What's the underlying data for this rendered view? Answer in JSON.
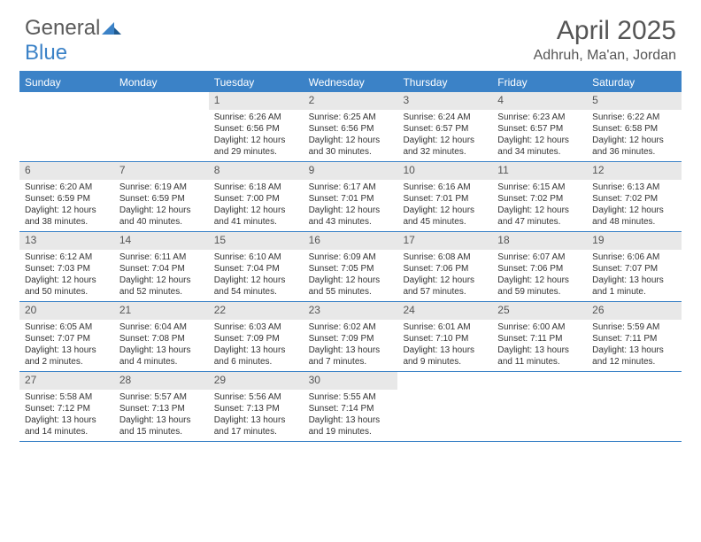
{
  "logo": {
    "general": "General",
    "blue": "Blue"
  },
  "title": "April 2025",
  "location": "Adhruh, Ma'an, Jordan",
  "colors": {
    "header_bar": "#3b82c7",
    "daynum_bg": "#e8e8e8",
    "text": "#333333",
    "title_text": "#555555",
    "background": "#ffffff"
  },
  "layout": {
    "columns": 7,
    "weeks": 5
  },
  "daysOfWeek": [
    "Sunday",
    "Monday",
    "Tuesday",
    "Wednesday",
    "Thursday",
    "Friday",
    "Saturday"
  ],
  "days": [
    {
      "n": "",
      "empty": true
    },
    {
      "n": "",
      "empty": true
    },
    {
      "n": "1",
      "sunrise": "6:26 AM",
      "sunset": "6:56 PM",
      "daylight": "12 hours and 29 minutes."
    },
    {
      "n": "2",
      "sunrise": "6:25 AM",
      "sunset": "6:56 PM",
      "daylight": "12 hours and 30 minutes."
    },
    {
      "n": "3",
      "sunrise": "6:24 AM",
      "sunset": "6:57 PM",
      "daylight": "12 hours and 32 minutes."
    },
    {
      "n": "4",
      "sunrise": "6:23 AM",
      "sunset": "6:57 PM",
      "daylight": "12 hours and 34 minutes."
    },
    {
      "n": "5",
      "sunrise": "6:22 AM",
      "sunset": "6:58 PM",
      "daylight": "12 hours and 36 minutes."
    },
    {
      "n": "6",
      "sunrise": "6:20 AM",
      "sunset": "6:59 PM",
      "daylight": "12 hours and 38 minutes."
    },
    {
      "n": "7",
      "sunrise": "6:19 AM",
      "sunset": "6:59 PM",
      "daylight": "12 hours and 40 minutes."
    },
    {
      "n": "8",
      "sunrise": "6:18 AM",
      "sunset": "7:00 PM",
      "daylight": "12 hours and 41 minutes."
    },
    {
      "n": "9",
      "sunrise": "6:17 AM",
      "sunset": "7:01 PM",
      "daylight": "12 hours and 43 minutes."
    },
    {
      "n": "10",
      "sunrise": "6:16 AM",
      "sunset": "7:01 PM",
      "daylight": "12 hours and 45 minutes."
    },
    {
      "n": "11",
      "sunrise": "6:15 AM",
      "sunset": "7:02 PM",
      "daylight": "12 hours and 47 minutes."
    },
    {
      "n": "12",
      "sunrise": "6:13 AM",
      "sunset": "7:02 PM",
      "daylight": "12 hours and 48 minutes."
    },
    {
      "n": "13",
      "sunrise": "6:12 AM",
      "sunset": "7:03 PM",
      "daylight": "12 hours and 50 minutes."
    },
    {
      "n": "14",
      "sunrise": "6:11 AM",
      "sunset": "7:04 PM",
      "daylight": "12 hours and 52 minutes."
    },
    {
      "n": "15",
      "sunrise": "6:10 AM",
      "sunset": "7:04 PM",
      "daylight": "12 hours and 54 minutes."
    },
    {
      "n": "16",
      "sunrise": "6:09 AM",
      "sunset": "7:05 PM",
      "daylight": "12 hours and 55 minutes."
    },
    {
      "n": "17",
      "sunrise": "6:08 AM",
      "sunset": "7:06 PM",
      "daylight": "12 hours and 57 minutes."
    },
    {
      "n": "18",
      "sunrise": "6:07 AM",
      "sunset": "7:06 PM",
      "daylight": "12 hours and 59 minutes."
    },
    {
      "n": "19",
      "sunrise": "6:06 AM",
      "sunset": "7:07 PM",
      "daylight": "13 hours and 1 minute."
    },
    {
      "n": "20",
      "sunrise": "6:05 AM",
      "sunset": "7:07 PM",
      "daylight": "13 hours and 2 minutes."
    },
    {
      "n": "21",
      "sunrise": "6:04 AM",
      "sunset": "7:08 PM",
      "daylight": "13 hours and 4 minutes."
    },
    {
      "n": "22",
      "sunrise": "6:03 AM",
      "sunset": "7:09 PM",
      "daylight": "13 hours and 6 minutes."
    },
    {
      "n": "23",
      "sunrise": "6:02 AM",
      "sunset": "7:09 PM",
      "daylight": "13 hours and 7 minutes."
    },
    {
      "n": "24",
      "sunrise": "6:01 AM",
      "sunset": "7:10 PM",
      "daylight": "13 hours and 9 minutes."
    },
    {
      "n": "25",
      "sunrise": "6:00 AM",
      "sunset": "7:11 PM",
      "daylight": "13 hours and 11 minutes."
    },
    {
      "n": "26",
      "sunrise": "5:59 AM",
      "sunset": "7:11 PM",
      "daylight": "13 hours and 12 minutes."
    },
    {
      "n": "27",
      "sunrise": "5:58 AM",
      "sunset": "7:12 PM",
      "daylight": "13 hours and 14 minutes."
    },
    {
      "n": "28",
      "sunrise": "5:57 AM",
      "sunset": "7:13 PM",
      "daylight": "13 hours and 15 minutes."
    },
    {
      "n": "29",
      "sunrise": "5:56 AM",
      "sunset": "7:13 PM",
      "daylight": "13 hours and 17 minutes."
    },
    {
      "n": "30",
      "sunrise": "5:55 AM",
      "sunset": "7:14 PM",
      "daylight": "13 hours and 19 minutes."
    },
    {
      "n": "",
      "empty": true
    },
    {
      "n": "",
      "empty": true
    },
    {
      "n": "",
      "empty": true
    }
  ],
  "labels": {
    "sunrise": "Sunrise: ",
    "sunset": "Sunset: ",
    "daylight": "Daylight: "
  }
}
